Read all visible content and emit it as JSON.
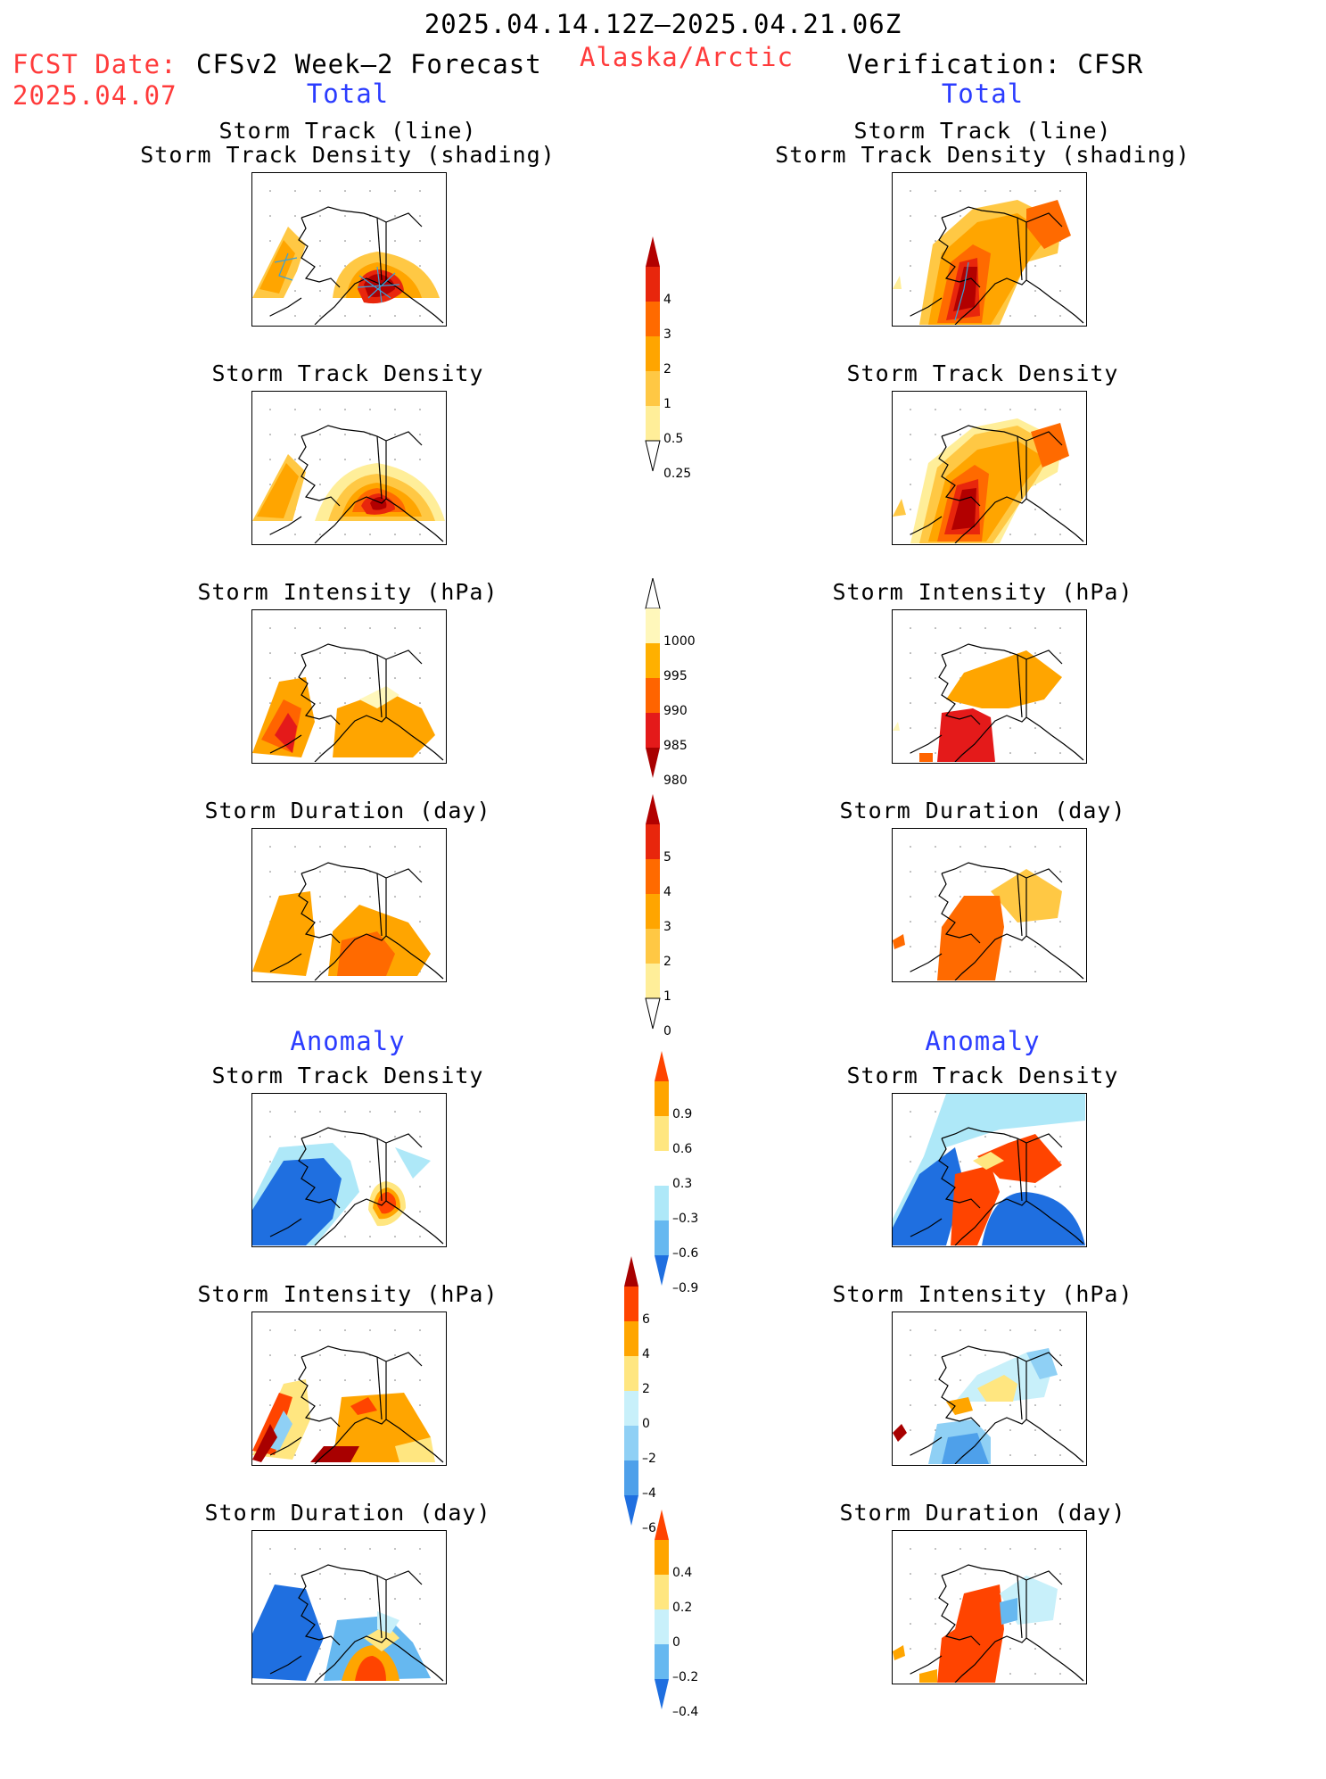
{
  "header": {
    "date_range": "2025.04.14.12Z–2025.04.21.06Z",
    "fcst_label": "FCST Date:",
    "fcst_date": "2025.04.07",
    "left_title": "CFSv2 Week–2 Forecast",
    "region": "Alaska/Arctic",
    "right_title": "Verification: CFSR",
    "total_left": "Total",
    "total_right": "Total",
    "anomaly_left": "Anomaly",
    "anomaly_right": "Anomaly"
  },
  "panels": {
    "track_line_1": "Storm Track (line)",
    "track_line_2": "Storm Track Density (shading)",
    "track_density": "Storm Track Density",
    "intensity": "Storm Intensity (hPa)",
    "duration": "Storm Duration (day)"
  },
  "colorbars": {
    "density": {
      "labels": [
        "4",
        "3",
        "2",
        "1",
        "0.5",
        "0.25"
      ],
      "colors": [
        "#b20000",
        "#e8260c",
        "#ff6a00",
        "#ffa500",
        "#ffc844",
        "#ffee99"
      ]
    },
    "intensity": {
      "labels": [
        "1000",
        "995",
        "990",
        "985",
        "980"
      ],
      "colors": [
        "#fff7bb",
        "#ffb000",
        "#ff6400",
        "#e41a1a",
        "#a80000"
      ]
    },
    "duration": {
      "labels": [
        "5",
        "4",
        "3",
        "2",
        "1",
        "0"
      ],
      "colors": [
        "#b20000",
        "#e8260c",
        "#ff6a00",
        "#ffa500",
        "#ffc844",
        "#ffee99"
      ]
    },
    "density_anom": {
      "labels": [
        "0.9",
        "0.6",
        "0.3",
        "–0.3",
        "–0.6",
        "–0.9"
      ],
      "colors": [
        "#ff4400",
        "#ffa500",
        "#ffe680",
        "#ffffff",
        "#aee8f8",
        "#66b8f0",
        "#1f6fe0"
      ]
    },
    "intensity_anom": {
      "labels": [
        "6",
        "4",
        "2",
        "0",
        "–2",
        "–4",
        "–6"
      ],
      "colors": [
        "#a80000",
        "#ff4400",
        "#ffa500",
        "#ffe680",
        "#c8f0fa",
        "#8fd0f5",
        "#4ea0ea",
        "#1f6fe0"
      ]
    },
    "duration_anom": {
      "labels": [
        "0.4",
        "0.2",
        "0",
        "–0.2",
        "–0.4"
      ],
      "colors": [
        "#ff4400",
        "#ffa500",
        "#ffe680",
        "#c8f0fa",
        "#66b8f0",
        "#1f6fe0"
      ]
    }
  }
}
